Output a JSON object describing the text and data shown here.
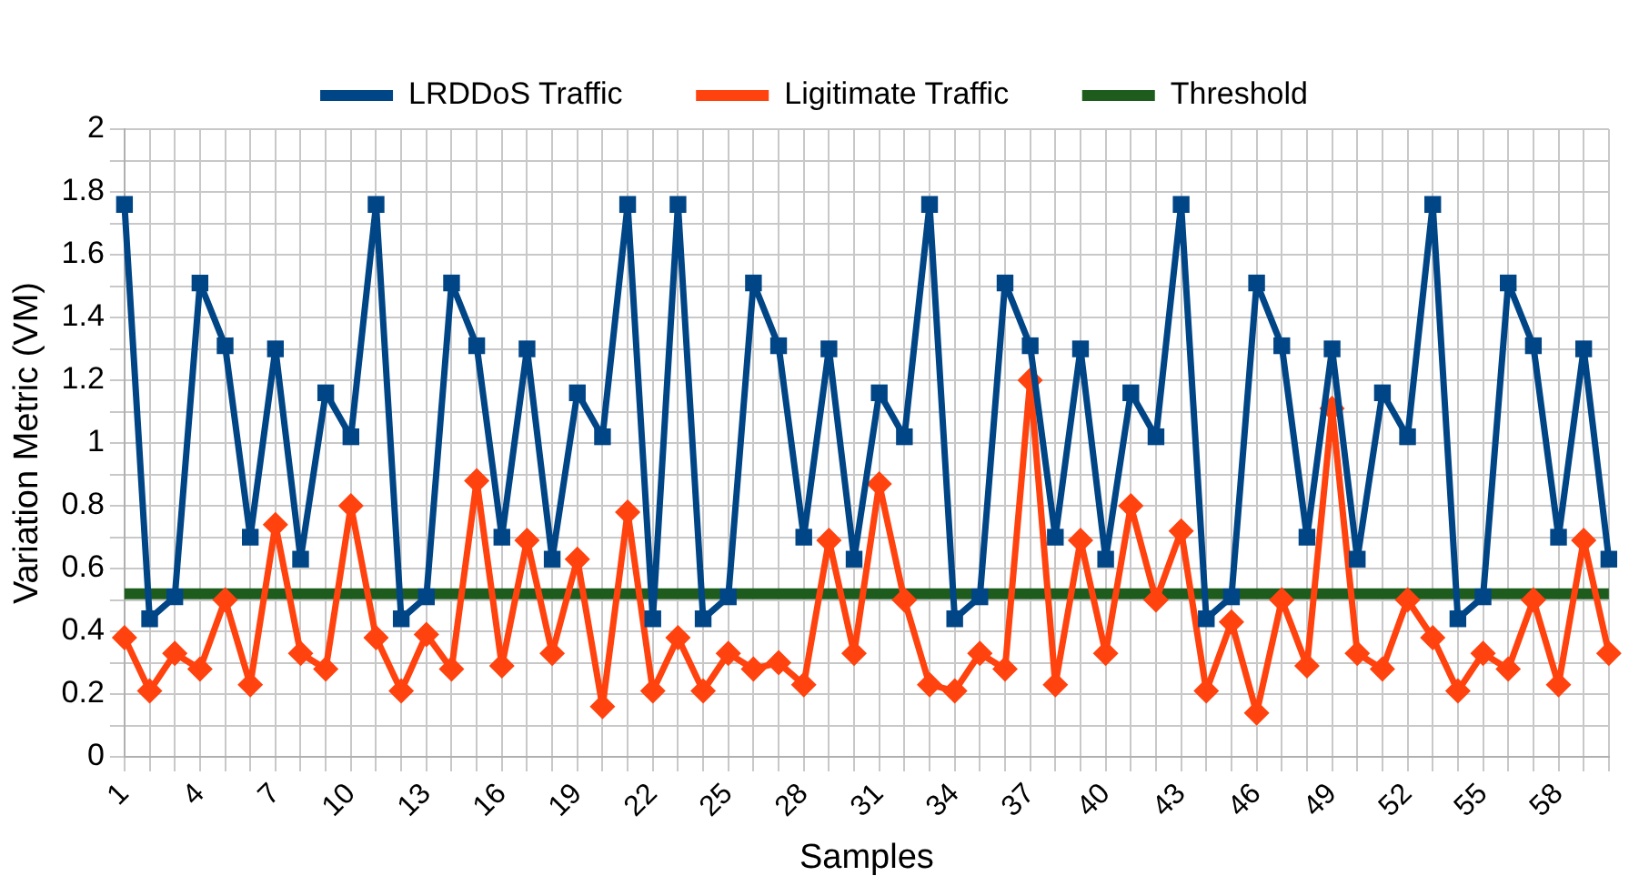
{
  "chart_data": {
    "type": "line",
    "xlabel": "Samples",
    "ylabel": "Variation Metric (VM)",
    "categories": [
      "1",
      null,
      null,
      "4",
      null,
      null,
      "7",
      null,
      null,
      "10",
      null,
      null,
      "13",
      null,
      null,
      "16",
      null,
      null,
      "19",
      null,
      null,
      "22",
      null,
      null,
      "25",
      null,
      null,
      "28",
      null,
      null,
      "31",
      null,
      null,
      "34",
      null,
      null,
      "37",
      null,
      null,
      "40",
      null,
      null,
      "43",
      null,
      null,
      "46",
      null,
      null,
      "49",
      null,
      null,
      "52",
      null,
      null,
      "55",
      null,
      null,
      "58",
      null,
      null
    ],
    "series": [
      {
        "name": "LRDDoS Traffic",
        "color": "#004586",
        "marker": "square",
        "values": [
          1.76,
          0.44,
          0.51,
          1.51,
          1.31,
          0.7,
          1.3,
          0.63,
          1.16,
          1.02,
          1.76,
          0.44,
          0.51,
          1.51,
          1.31,
          0.7,
          1.3,
          0.63,
          1.16,
          1.02,
          1.76,
          0.44,
          1.76,
          0.44,
          0.51,
          1.51,
          1.31,
          0.7,
          1.3,
          0.63,
          1.16,
          1.02,
          1.76,
          0.44,
          0.51,
          1.51,
          1.31,
          0.7,
          1.3,
          0.63,
          1.16,
          1.02,
          1.76,
          0.44,
          0.51,
          1.51,
          1.31,
          0.7,
          1.3,
          0.63,
          1.16,
          1.02,
          1.76,
          0.44,
          0.51,
          1.51,
          1.31,
          0.7,
          1.3,
          0.63
        ]
      },
      {
        "name": "Ligitimate Traffic",
        "color": "#ff420e",
        "marker": "diamond",
        "values": [
          0.38,
          0.21,
          0.33,
          0.28,
          0.5,
          0.23,
          0.74,
          0.33,
          0.28,
          0.8,
          0.38,
          0.21,
          0.39,
          0.28,
          0.88,
          0.29,
          0.69,
          0.33,
          0.63,
          0.16,
          0.78,
          0.21,
          0.38,
          0.21,
          0.33,
          0.28,
          0.3,
          0.23,
          0.69,
          0.33,
          0.87,
          0.5,
          0.23,
          0.21,
          0.33,
          0.28,
          1.2,
          0.23,
          0.69,
          0.33,
          0.8,
          0.5,
          0.72,
          0.21,
          0.43,
          0.14,
          0.5,
          0.29,
          1.11,
          0.33,
          0.28,
          0.5,
          0.38,
          0.21,
          0.33,
          0.28,
          0.5,
          0.23,
          0.69,
          0.33
        ]
      }
    ],
    "ref_lines": [
      {
        "axis": "y",
        "value": 0.52,
        "label": "Threshold",
        "color": "#1e5c1e"
      }
    ],
    "ylim": [
      0,
      2
    ],
    "yticks": [
      0,
      {
        "value": 0.1,
        "label": null
      },
      0.2,
      {
        "value": 0.3,
        "label": null
      },
      0.4,
      {
        "value": 0.5,
        "label": null
      },
      0.6,
      {
        "value": 0.7,
        "label": null
      },
      0.8,
      {
        "value": 0.9,
        "label": null
      },
      1,
      {
        "value": 1.1,
        "label": null
      },
      1.2,
      {
        "value": 1.3,
        "label": null
      },
      1.4,
      {
        "value": 1.5,
        "label": null
      },
      1.6,
      {
        "value": 1.7,
        "label": null
      },
      1.8,
      {
        "value": 1.9,
        "label": null
      },
      2
    ],
    "grid": true,
    "legend": "top"
  }
}
